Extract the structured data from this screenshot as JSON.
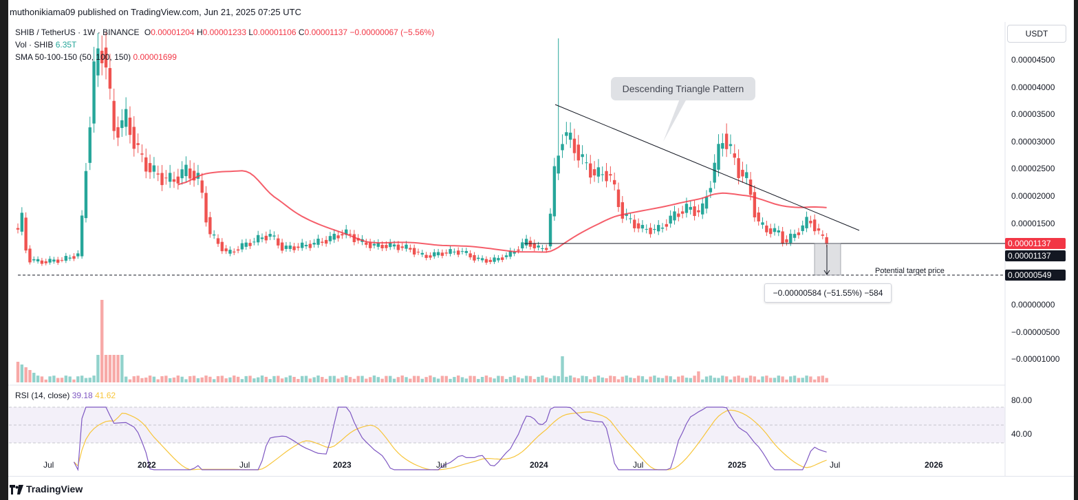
{
  "header": {
    "published": "muthonikiama09 published on TradingView.com, Jun 21, 2025 07:25 UTC"
  },
  "legend": {
    "symbol": "SHIB / TetherUS · 1W · BINANCE",
    "o_lbl": "O",
    "o": "0.00001204",
    "h_lbl": "H",
    "h": "0.00001233",
    "l_lbl": "L",
    "l": "0.00001106",
    "c_lbl": "C",
    "c": "0.00001137",
    "change": "−0.00000067 (−5.56%)",
    "vol_lbl": "Vol · SHIB",
    "vol": "6.35T",
    "sma_lbl": "SMA 50-100-150 (50, 100, 150)",
    "sma": "0.00001699"
  },
  "rsi_legend": {
    "label": "RSI (14, close)",
    "v1": "39.18",
    "v2": "41.62"
  },
  "currency": "USDT",
  "price_axis": [
    "0.00004500",
    "0.00004000",
    "0.00003500",
    "0.00003000",
    "0.00002500",
    "0.00002000",
    "0.00001500",
    "0.00000000",
    "−0.00000500",
    "−0.00001000"
  ],
  "badges": {
    "last": "0.00001137",
    "last2": "0.00001137",
    "target": "0.00000549"
  },
  "rsi_axis": [
    "80.00",
    "40.00"
  ],
  "time_axis": [
    {
      "t": "Jul",
      "bold": false
    },
    {
      "t": "2022",
      "bold": true
    },
    {
      "t": "Jul",
      "bold": false
    },
    {
      "t": "2023",
      "bold": true
    },
    {
      "t": "Jul",
      "bold": false
    },
    {
      "t": "2024",
      "bold": true
    },
    {
      "t": "Jul",
      "bold": false
    },
    {
      "t": "2025",
      "bold": true
    },
    {
      "t": "Jul",
      "bold": false
    },
    {
      "t": "2026",
      "bold": true
    }
  ],
  "annotations": {
    "callout": "Descending Triangle Pattern",
    "target_label": "Potential target price",
    "measure": "−0.00000584 (−51.55%) −584"
  },
  "colors": {
    "up": "#26a69a",
    "down": "#ef5350",
    "sma": "#f23645",
    "rsi": "#7e57c2",
    "rsi_ma": "#f7c53a"
  },
  "footer": {
    "brand": "TradingView"
  }
}
